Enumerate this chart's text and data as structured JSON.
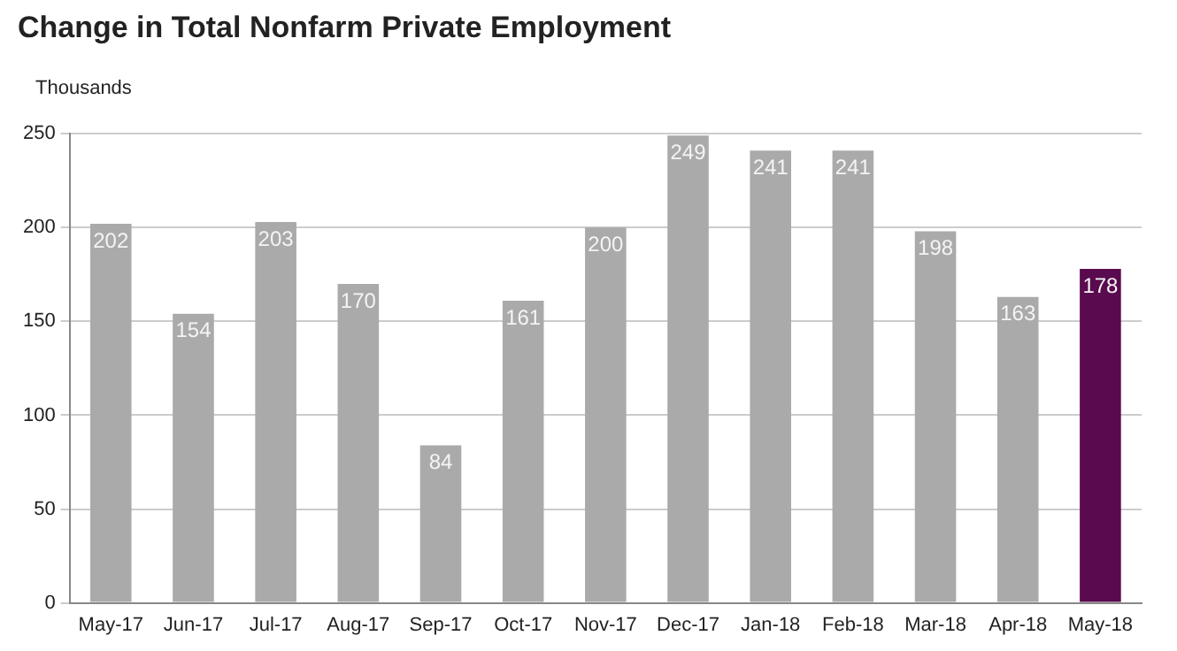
{
  "chart_data": {
    "type": "bar",
    "title": "Change in Total Nonfarm Private Employment",
    "ylabel": "Thousands",
    "categories": [
      "May-17",
      "Jun-17",
      "Jul-17",
      "Aug-17",
      "Sep-17",
      "Oct-17",
      "Nov-17",
      "Dec-17",
      "Jan-18",
      "Feb-18",
      "Mar-18",
      "Apr-18",
      "May-18"
    ],
    "values": [
      202,
      154,
      203,
      170,
      84,
      161,
      200,
      249,
      241,
      241,
      198,
      163,
      178
    ],
    "colors": [
      "#aaaaaa",
      "#aaaaaa",
      "#aaaaaa",
      "#aaaaaa",
      "#aaaaaa",
      "#aaaaaa",
      "#aaaaaa",
      "#aaaaaa",
      "#aaaaaa",
      "#aaaaaa",
      "#aaaaaa",
      "#aaaaaa",
      "#5a0a4e"
    ],
    "ylim": [
      0,
      250
    ],
    "yticks": [
      0,
      50,
      100,
      150,
      200,
      250
    ],
    "grid": "y",
    "data_labels": true
  }
}
